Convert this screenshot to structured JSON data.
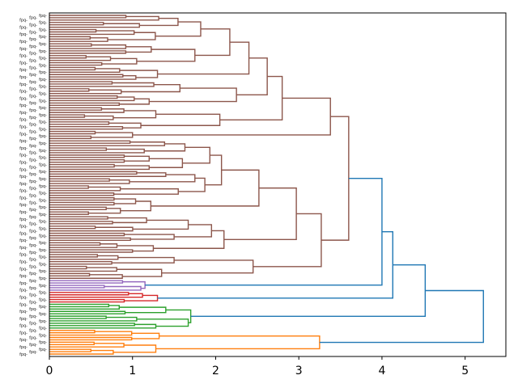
{
  "chart_data": {
    "type": "dendrogram",
    "orientation": "left",
    "title": "",
    "xlabel": "",
    "ylabel": "",
    "xlim": [
      0,
      5.49
    ],
    "xticks": [
      0,
      1,
      2,
      3,
      4,
      5
    ],
    "grid": false,
    "above_threshold_color": "#1f77b4",
    "leaf_label_prefix": "fpq-",
    "tree": {
      "h": 5.22,
      "c": [
        {
          "h": 4.52,
          "c": [
            {
              "h": 4.13,
              "c": [
                {
                  "h": 4.0,
                  "c": [
                    {
                      "h": 3.6,
                      "color": "#8c564b",
                      "c": [
                        {
                          "h": 3.38,
                          "c": [
                            {
                              "h": 2.8,
                              "c": [
                                {
                                  "h": 2.62,
                                  "c": [
                                    {
                                      "h": 2.4,
                                      "c": [
                                        {
                                          "h": 2.17,
                                          "c": [
                                            {
                                              "g": 12,
                                              "h": 1.82
                                            },
                                            {
                                              "g": 10,
                                              "h": 1.75
                                            }
                                          ]
                                        },
                                        {
                                          "g": 6,
                                          "h": 1.3
                                        }
                                      ]
                                    },
                                    {
                                      "h": 2.25,
                                      "c": [
                                        {
                                          "g": 6,
                                          "h": 1.57
                                        },
                                        {
                                          "g": 5,
                                          "h": 1.2
                                        }
                                      ]
                                    }
                                  ]
                                },
                                {
                                  "h": 2.05,
                                  "c": [
                                    {
                                      "g": 6,
                                      "h": 1.28
                                    },
                                    {
                                      "g": 4,
                                      "h": 1.1
                                    }
                                  ]
                                }
                              ]
                            },
                            {
                              "g": 4,
                              "h": 1.0
                            }
                          ]
                        },
                        {
                          "h": 3.27,
                          "c": [
                            {
                              "h": 2.97,
                              "c": [
                                {
                                  "h": 2.52,
                                  "c": [
                                    {
                                      "h": 2.07,
                                      "c": [
                                        {
                                          "h": 1.93,
                                          "c": [
                                            {
                                              "g": 6,
                                              "h": 1.63
                                            },
                                            {
                                              "g": 7,
                                              "h": 1.6
                                            }
                                          ]
                                        },
                                        {
                                          "h": 1.87,
                                          "c": [
                                            {
                                              "g": 6,
                                              "h": 1.75
                                            },
                                            {
                                              "g": 5,
                                              "h": 1.55
                                            }
                                          ]
                                        }
                                      ]
                                    },
                                    {
                                      "g": 8,
                                      "h": 1.22
                                    }
                                  ]
                                },
                                {
                                  "h": 2.1,
                                  "c": [
                                    {
                                      "h": 1.95,
                                      "c": [
                                        {
                                          "g": 7,
                                          "h": 1.67
                                        },
                                        {
                                          "g": 4,
                                          "h": 1.5
                                        }
                                      ]
                                    },
                                    {
                                      "g": 5,
                                      "h": 1.25
                                    }
                                  ]
                                }
                              ]
                            },
                            {
                              "h": 2.45,
                              "c": [
                                {
                                  "g": 5,
                                  "h": 1.5
                                },
                                {
                                  "g": 6,
                                  "h": 1.35
                                }
                              ]
                            }
                          ]
                        }
                      ]
                    },
                    {
                      "h": 1.15,
                      "color": "#9467bd",
                      "c": [
                        {
                          "g": 2,
                          "h": 0.88
                        },
                        {
                          "g": 3,
                          "h": 1.1
                        }
                      ]
                    }
                  ]
                },
                {
                  "h": 1.3,
                  "color": "#d62728",
                  "c": [
                    {
                      "g": 3,
                      "h": 1.12
                    },
                    {
                      "g": 2,
                      "h": 0.9
                    }
                  ]
                }
              ]
            },
            {
              "h": 1.7,
              "color": "#2ca02c",
              "c": [
                {
                  "g": 5,
                  "h": 1.4
                },
                {
                  "h": 1.67,
                  "c": [
                    {
                      "g": 3,
                      "h": 1.05
                    },
                    {
                      "g": 3,
                      "h": 1.28
                    }
                  ]
                }
              ]
            }
          ]
        },
        {
          "h": 3.25,
          "color": "#ff7f0e",
          "c": [
            {
              "g": 5,
              "h": 1.32
            },
            {
              "g": 6,
              "h": 1.28
            }
          ]
        }
      ]
    }
  }
}
